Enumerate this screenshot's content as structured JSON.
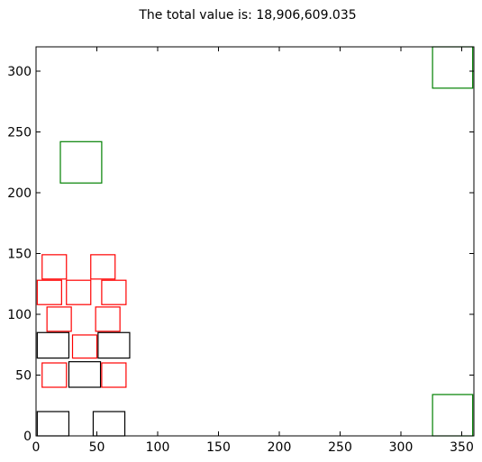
{
  "chart_data": {
    "type": "scatter",
    "title": "The total value is: 18,906,609.035",
    "xlabel": "",
    "ylabel": "",
    "xlim": [
      0,
      360
    ],
    "ylim": [
      0,
      320
    ],
    "x_ticks": [
      0,
      50,
      100,
      150,
      200,
      250,
      300,
      350
    ],
    "y_ticks": [
      0,
      50,
      100,
      150,
      200,
      250,
      300
    ],
    "grid": false,
    "legend": "none",
    "series": [
      {
        "color": "#000000",
        "rects": [
          {
            "x0": 1,
            "y0": 0,
            "x1": 27,
            "y1": 20
          },
          {
            "x0": 47,
            "y0": 0,
            "x1": 73,
            "y1": 20
          },
          {
            "x0": 27,
            "y0": 40,
            "x1": 53,
            "y1": 61
          },
          {
            "x0": 1,
            "y0": 64,
            "x1": 27,
            "y1": 85
          },
          {
            "x0": 51,
            "y0": 64,
            "x1": 77,
            "y1": 85
          }
        ]
      },
      {
        "color": "#ff0000",
        "rects": [
          {
            "x0": 5,
            "y0": 40,
            "x1": 25,
            "y1": 60
          },
          {
            "x0": 54,
            "y0": 40,
            "x1": 74,
            "y1": 60
          },
          {
            "x0": 30,
            "y0": 64,
            "x1": 50,
            "y1": 83
          },
          {
            "x0": 9,
            "y0": 86,
            "x1": 29,
            "y1": 106
          },
          {
            "x0": 49,
            "y0": 86,
            "x1": 69,
            "y1": 106
          },
          {
            "x0": 1,
            "y0": 108,
            "x1": 21,
            "y1": 128
          },
          {
            "x0": 25,
            "y0": 108,
            "x1": 45,
            "y1": 128
          },
          {
            "x0": 54,
            "y0": 108,
            "x1": 74,
            "y1": 128
          },
          {
            "x0": 5,
            "y0": 129,
            "x1": 25,
            "y1": 149
          },
          {
            "x0": 45,
            "y0": 129,
            "x1": 65,
            "y1": 149
          }
        ]
      },
      {
        "color": "#008000",
        "rects": [
          {
            "x0": 20,
            "y0": 208,
            "x1": 54,
            "y1": 242
          },
          {
            "x0": 326,
            "y0": 286,
            "x1": 359,
            "y1": 320
          },
          {
            "x0": 326,
            "y0": 0,
            "x1": 359,
            "y1": 34
          }
        ]
      }
    ]
  }
}
